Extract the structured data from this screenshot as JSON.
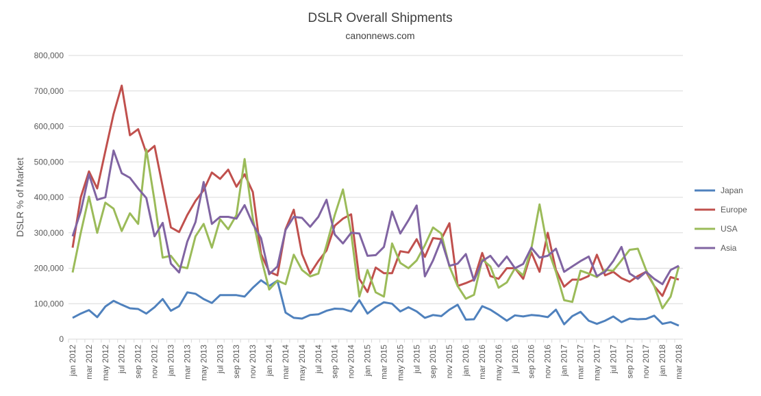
{
  "chart_data": {
    "type": "line",
    "title": "DSLR Overall Shipments",
    "subtitle": "canonnews.com",
    "y_label": "DSLR % of Market",
    "categories": [
      "jan 2012",
      null,
      "mar 2012",
      null,
      "may 2012",
      null,
      "jul 2012",
      null,
      "sep 2012",
      null,
      "nov 2012",
      null,
      "jan 2013",
      null,
      "mar 2013",
      null,
      "may 2013",
      null,
      "jul 2013",
      null,
      "sep 2013",
      null,
      "nov 2013",
      null,
      "jan 2014",
      null,
      "mar 2014",
      null,
      "may 2014",
      null,
      "jul 2014",
      null,
      "sep 2014",
      null,
      "nov 2014",
      null,
      "jan 2015",
      null,
      "mar 2015",
      null,
      "may 2015",
      null,
      "jul 2015",
      null,
      "sep 2015",
      null,
      "nov 2015",
      null,
      "jan 2016",
      null,
      "mar 2016",
      null,
      "may 2016",
      null,
      "jul 2016",
      null,
      "sep 2016",
      null,
      "nov 2016",
      null,
      "jan 2017",
      null,
      "mar 2017",
      null,
      "may 2017",
      null,
      "jul 2017",
      null,
      "sep 2017",
      null,
      "nov 2017",
      null,
      "jan 2018",
      null,
      "mar 2018"
    ],
    "series": [
      {
        "name": "Japan",
        "color": "#4f81bd",
        "values": [
          60000,
          72000,
          82000,
          62000,
          92000,
          108000,
          97000,
          87000,
          85000,
          72000,
          90000,
          113000,
          80000,
          93000,
          132000,
          128000,
          113000,
          102000,
          124000,
          124000,
          124000,
          120000,
          145000,
          166000,
          150000,
          165000,
          75000,
          60000,
          58000,
          68000,
          70000,
          80000,
          86000,
          85000,
          78000,
          110000,
          72000,
          90000,
          104000,
          100000,
          78000,
          90000,
          78000,
          60000,
          68000,
          65000,
          83000,
          97000,
          55000,
          56000,
          93000,
          83000,
          68000,
          52000,
          67000,
          64000,
          68000,
          66000,
          62000,
          83000,
          42000,
          65000,
          77000,
          52000,
          43000,
          52000,
          64000,
          48000,
          58000,
          56000,
          57000,
          66000,
          43000,
          48000,
          38000
        ]
      },
      {
        "name": "Europe",
        "color": "#c0504d",
        "values": [
          258000,
          400000,
          473000,
          425000,
          530000,
          635000,
          715000,
          575000,
          592000,
          525000,
          545000,
          430000,
          315000,
          302000,
          350000,
          390000,
          420000,
          470000,
          452000,
          478000,
          430000,
          465000,
          415000,
          240000,
          190000,
          180000,
          310000,
          365000,
          240000,
          185000,
          220000,
          250000,
          320000,
          340000,
          352000,
          170000,
          133000,
          202000,
          186000,
          186000,
          248000,
          244000,
          282000,
          232000,
          285000,
          282000,
          327000,
          150000,
          158000,
          168000,
          243000,
          178000,
          170000,
          200000,
          200000,
          170000,
          245000,
          190000,
          300000,
          195000,
          148000,
          168000,
          168000,
          178000,
          238000,
          180000,
          190000,
          172000,
          162000,
          178000,
          190000,
          150000,
          122000,
          175000,
          168000
        ]
      },
      {
        "name": "USA",
        "color": "#9bbb59",
        "values": [
          188000,
          300000,
          402000,
          300000,
          385000,
          368000,
          305000,
          355000,
          325000,
          535000,
          390000,
          230000,
          235000,
          205000,
          200000,
          290000,
          325000,
          258000,
          338000,
          310000,
          350000,
          508000,
          340000,
          230000,
          140000,
          165000,
          155000,
          238000,
          195000,
          177000,
          185000,
          265000,
          350000,
          422000,
          300000,
          120000,
          195000,
          132000,
          120000,
          270000,
          215000,
          200000,
          222000,
          265000,
          315000,
          298000,
          205000,
          150000,
          114000,
          125000,
          225000,
          205000,
          145000,
          160000,
          200000,
          180000,
          255000,
          380000,
          255000,
          190000,
          110000,
          105000,
          193000,
          185000,
          175000,
          195000,
          193000,
          222000,
          252000,
          255000,
          195000,
          150000,
          87000,
          120000,
          205000
        ]
      },
      {
        "name": "Asia",
        "color": "#8064a2",
        "values": [
          290000,
          360000,
          465000,
          393000,
          400000,
          532000,
          468000,
          455000,
          425000,
          398000,
          290000,
          328000,
          213000,
          188000,
          275000,
          330000,
          443000,
          325000,
          345000,
          345000,
          340000,
          378000,
          325000,
          285000,
          183000,
          205000,
          308000,
          345000,
          342000,
          317000,
          345000,
          393000,
          295000,
          270000,
          300000,
          298000,
          235000,
          237000,
          260000,
          360000,
          298000,
          335000,
          377000,
          177000,
          222000,
          280000,
          207000,
          213000,
          240000,
          165000,
          220000,
          235000,
          205000,
          233000,
          200000,
          212000,
          258000,
          230000,
          235000,
          255000,
          190000,
          205000,
          220000,
          233000,
          178000,
          190000,
          220000,
          260000,
          185000,
          170000,
          190000,
          170000,
          155000,
          195000,
          207000
        ]
      }
    ],
    "ylim": [
      0,
      800000
    ],
    "yticks": [
      0,
      {
        "value": 100000,
        "label": "100,000"
      },
      {
        "value": 200000,
        "label": "200,000"
      },
      {
        "value": 300000,
        "label": "300,000"
      },
      {
        "value": 400000,
        "label": "400,000"
      },
      {
        "value": 500000,
        "label": "500,000"
      },
      {
        "value": 600000,
        "label": "600,000"
      },
      {
        "value": 700000,
        "label": "700,000"
      },
      {
        "value": 800000,
        "label": "800,000"
      }
    ],
    "grid": true,
    "legend": "right"
  }
}
